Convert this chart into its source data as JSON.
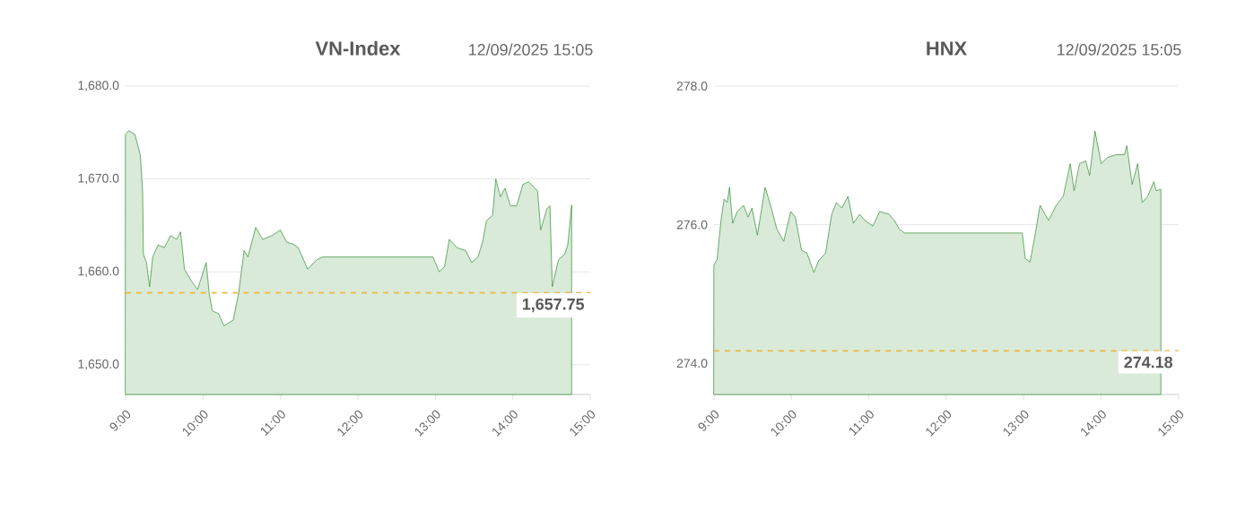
{
  "chart_data": [
    {
      "type": "area",
      "title": "VN-Index",
      "subtitle": "12/09/2025 15:05",
      "grid": "y",
      "xlim": [
        9,
        15
      ],
      "ylim": [
        1646.8,
        1680
      ],
      "xticks": [
        {
          "value": 9,
          "label": "9:00"
        },
        {
          "value": 10,
          "label": "10:00"
        },
        {
          "value": 11,
          "label": "11:00"
        },
        {
          "value": 12,
          "label": "12:00"
        },
        {
          "value": 13,
          "label": "13:00"
        },
        {
          "value": 14,
          "label": "14:00"
        },
        {
          "value": 15,
          "label": "15:00"
        }
      ],
      "yticks": [
        {
          "value": 1650,
          "label": "1,650.0"
        },
        {
          "value": 1660,
          "label": "1,660.0"
        },
        {
          "value": 1670,
          "label": "1,670.0"
        },
        {
          "value": 1680,
          "label": "1,680.0"
        }
      ],
      "ref_lines": [
        {
          "axis": "y",
          "value": 1657.75,
          "label": "1,657.75",
          "color": "#f0b840",
          "line_style": "dashed"
        }
      ],
      "series": [
        {
          "color": "#2e8b2e",
          "x": [
            9.0,
            9.04,
            9.12,
            9.19,
            9.22,
            9.23,
            9.27,
            9.31,
            9.35,
            9.42,
            9.5,
            9.58,
            9.66,
            9.71,
            9.76,
            9.85,
            9.93,
            10.04,
            10.08,
            10.12,
            10.2,
            10.27,
            10.39,
            10.46,
            10.53,
            10.58,
            10.68,
            10.77,
            10.89,
            11.0,
            11.08,
            11.16,
            11.23,
            11.35,
            11.47,
            11.54,
            12.97,
            13.05,
            13.12,
            13.18,
            13.28,
            13.39,
            13.47,
            13.55,
            13.61,
            13.66,
            13.74,
            13.78,
            13.84,
            13.9,
            13.97,
            14.05,
            14.13,
            14.2,
            14.24,
            14.32,
            14.36,
            14.44,
            14.48,
            14.51,
            14.59,
            14.67,
            14.71,
            14.76
          ],
          "values": [
            1674.8,
            1675.2,
            1674.8,
            1672.6,
            1668.7,
            1661.9,
            1661,
            1658.4,
            1661.6,
            1662.9,
            1662.6,
            1663.9,
            1663.5,
            1664.3,
            1660.3,
            1659,
            1658.1,
            1661,
            1657.7,
            1655.8,
            1655.5,
            1654.2,
            1654.8,
            1657.7,
            1662.3,
            1661.6,
            1664.8,
            1663.5,
            1663.9,
            1664.5,
            1663.2,
            1663,
            1662.6,
            1660.3,
            1661.3,
            1661.6,
            1661.6,
            1660,
            1660.6,
            1663.5,
            1662.6,
            1662.3,
            1661,
            1661.6,
            1663.2,
            1665.5,
            1666.1,
            1670,
            1668.1,
            1669,
            1667.1,
            1667.1,
            1669.4,
            1669.7,
            1669.4,
            1668.7,
            1664.5,
            1666.8,
            1667.1,
            1658.4,
            1661.3,
            1661.9,
            1662.9,
            1667.2
          ]
        }
      ]
    },
    {
      "type": "area",
      "title": "HNX",
      "subtitle": "12/09/2025 15:05",
      "grid": "y",
      "xlim": [
        9,
        15
      ],
      "ylim": [
        273.55,
        278
      ],
      "xticks": [
        {
          "value": 9,
          "label": "9:00"
        },
        {
          "value": 10,
          "label": "10:00"
        },
        {
          "value": 11,
          "label": "11:00"
        },
        {
          "value": 12,
          "label": "12:00"
        },
        {
          "value": 13,
          "label": "13:00"
        },
        {
          "value": 14,
          "label": "14:00"
        },
        {
          "value": 15,
          "label": "15:00"
        }
      ],
      "yticks": [
        {
          "value": 274,
          "label": "274.0"
        },
        {
          "value": 276,
          "label": "276.0"
        },
        {
          "value": 278,
          "label": "278.0"
        }
      ],
      "ref_lines": [
        {
          "axis": "y",
          "value": 274.18,
          "label": "274.18",
          "color": "#f0b840",
          "line_style": "dashed"
        }
      ],
      "series": [
        {
          "color": "#2e8b2e",
          "x": [
            9.0,
            9.04,
            9.09,
            9.13,
            9.17,
            9.2,
            9.24,
            9.3,
            9.38,
            9.44,
            9.49,
            9.56,
            9.66,
            9.74,
            9.81,
            9.9,
            9.99,
            10.05,
            10.13,
            10.2,
            10.29,
            10.35,
            10.44,
            10.52,
            10.58,
            10.65,
            10.73,
            10.8,
            10.88,
            10.95,
            11.05,
            11.14,
            11.26,
            11.33,
            11.39,
            11.46,
            12.98,
            13.02,
            13.08,
            13.14,
            13.21,
            13.32,
            13.42,
            13.51,
            13.6,
            13.65,
            13.72,
            13.8,
            13.85,
            13.92,
            14.0,
            14.08,
            14.19,
            14.3,
            14.33,
            14.4,
            14.47,
            14.53,
            14.6,
            14.68,
            14.71,
            14.77
          ],
          "values": [
            275.42,
            275.5,
            276.06,
            276.37,
            276.32,
            276.54,
            276.02,
            276.19,
            276.28,
            276.11,
            276.24,
            275.85,
            276.54,
            276.24,
            275.94,
            275.76,
            276.19,
            276.11,
            275.63,
            275.59,
            275.31,
            275.48,
            275.59,
            276.15,
            276.32,
            276.24,
            276.41,
            276.02,
            276.15,
            276.06,
            275.98,
            276.19,
            276.15,
            276.06,
            275.94,
            275.88,
            275.88,
            275.51,
            275.46,
            275.81,
            276.28,
            276.06,
            276.28,
            276.41,
            276.88,
            276.49,
            276.88,
            276.92,
            276.71,
            277.35,
            276.88,
            276.97,
            277.01,
            277.01,
            277.14,
            276.58,
            276.88,
            276.32,
            276.41,
            276.62,
            276.49,
            276.51
          ]
        }
      ]
    }
  ]
}
